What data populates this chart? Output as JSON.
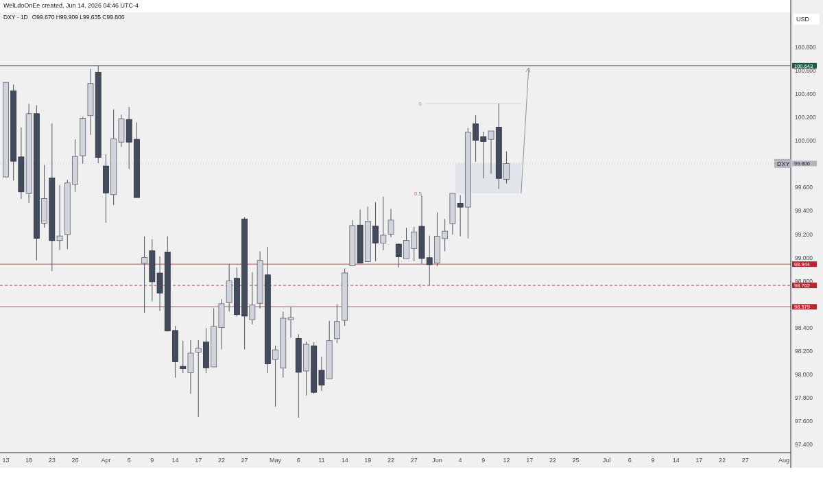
{
  "chart_data": {
    "type": "candlestick",
    "title": "DXY · 1D",
    "subtitle": "O99.670 H99.909 L99.635 C99.806",
    "ylabel": "USD",
    "annotations": [
      "WelLdoOnEe created, Jun 14, 2026 04:46 UTC-4",
      {
        "text": "DXY",
        "y": 99.806
      },
      "0",
      "0.5",
      {
        "text": "1",
        "y": 98.762
      }
    ],
    "categories": [
      "13",
      null,
      null,
      "18",
      null,
      null,
      "23",
      null,
      null,
      "26",
      null,
      null,
      null,
      "Apr",
      null,
      null,
      "6",
      null,
      null,
      "9",
      null,
      null,
      "14",
      null,
      null,
      "17",
      null,
      null,
      "22",
      null,
      null,
      "27",
      null,
      null,
      null,
      "May",
      null,
      null,
      "6",
      null,
      null,
      "11",
      null,
      null,
      "14",
      null,
      null,
      "19",
      null,
      null,
      "22",
      null,
      null,
      "27",
      null,
      null,
      "Jun",
      null,
      null,
      "4",
      null,
      null,
      "9",
      null,
      null,
      "12",
      null,
      null,
      "17",
      null,
      null,
      "22",
      null,
      null,
      "25",
      null,
      null,
      null,
      "Jul",
      null,
      null,
      "6",
      null,
      null,
      "9",
      null,
      null,
      "14",
      null,
      null,
      "17",
      null,
      null,
      "22",
      null,
      null,
      "27",
      null,
      null,
      null,
      null,
      "Aug"
    ],
    "ohlc": [
      [
        99.69,
        100.5,
        99.69,
        100.5
      ],
      [
        100.428,
        100.483,
        99.661,
        99.825
      ],
      [
        99.862,
        100.115,
        99.502,
        99.563
      ],
      [
        99.549,
        100.316,
        99.467,
        100.232
      ],
      [
        100.232,
        100.305,
        98.977,
        99.165
      ],
      [
        99.294,
        99.794,
        99.257,
        99.506
      ],
      [
        99.682,
        100.148,
        98.885,
        99.146
      ],
      [
        99.146,
        99.621,
        99.065,
        99.185
      ],
      [
        99.197,
        99.666,
        99.073,
        99.639
      ],
      [
        99.627,
        100.013,
        99.563,
        99.866
      ],
      [
        99.872,
        100.207,
        99.805,
        100.193
      ],
      [
        100.215,
        100.616,
        100.05,
        100.491
      ],
      [
        100.587,
        100.643,
        99.809,
        99.858
      ],
      [
        99.784,
        99.886,
        99.298,
        99.553
      ],
      [
        99.539,
        100.269,
        99.451,
        100.017
      ],
      [
        99.989,
        100.224,
        99.948,
        100.189
      ],
      [
        100.183,
        100.289,
        99.758,
        99.989
      ],
      [
        100.013,
        100.158,
        99.514,
        99.514
      ],
      [
        98.95,
        99.181,
        98.527,
        99.001
      ],
      [
        99.058,
        99.157,
        98.625,
        98.793
      ],
      [
        98.868,
        99.011,
        98.543,
        98.697
      ],
      [
        99.048,
        99.182,
        98.367,
        98.373
      ],
      [
        98.376,
        98.415,
        97.972,
        98.109
      ],
      [
        98.069,
        98.289,
        98.01,
        98.05
      ],
      [
        98.014,
        98.293,
        97.833,
        98.182
      ],
      [
        98.19,
        98.293,
        97.636,
        98.224
      ],
      [
        98.277,
        98.396,
        98.01,
        98.056
      ],
      [
        98.064,
        98.567,
        98.064,
        98.411
      ],
      [
        98.401,
        98.644,
        98.214,
        98.605
      ],
      [
        98.615,
        98.943,
        98.539,
        98.8
      ],
      [
        98.823,
        98.916,
        98.495,
        98.512
      ],
      [
        99.331,
        99.346,
        98.214,
        98.499
      ],
      [
        98.468,
        98.876,
        98.428,
        98.594
      ],
      [
        98.609,
        99.054,
        98.563,
        98.976
      ],
      [
        98.852,
        99.092,
        98.01,
        98.09
      ],
      [
        98.128,
        98.247,
        97.724,
        98.21
      ],
      [
        98.054,
        98.539,
        97.972,
        98.481
      ],
      [
        98.468,
        98.579,
        98.314,
        98.487
      ],
      [
        98.308,
        98.344,
        97.629,
        98.018
      ],
      [
        98.029,
        98.281,
        97.819,
        98.258
      ],
      [
        98.245,
        98.277,
        97.833,
        97.846
      ],
      [
        98.035,
        98.153,
        97.858,
        97.909
      ],
      [
        97.962,
        98.459,
        97.957,
        98.289
      ],
      [
        98.306,
        98.602,
        98.268,
        98.453
      ],
      [
        98.463,
        98.907,
        98.415,
        98.869
      ],
      [
        98.93,
        99.321,
        98.93,
        99.274
      ],
      [
        99.278,
        99.411,
        98.949,
        98.953
      ],
      [
        98.965,
        99.436,
        98.965,
        99.312
      ],
      [
        99.27,
        99.474,
        98.969,
        99.125
      ],
      [
        99.125,
        99.522,
        99.064,
        99.192
      ],
      [
        99.201,
        99.417,
        99.175,
        99.321
      ],
      [
        99.115,
        99.121,
        98.915,
        99.007
      ],
      [
        98.989,
        99.255,
        98.989,
        99.148
      ],
      [
        99.077,
        99.264,
        98.969,
        99.22
      ],
      [
        99.268,
        99.531,
        98.946,
        98.993
      ],
      [
        98.999,
        99.188,
        98.762,
        98.94
      ],
      [
        98.953,
        99.388,
        98.925,
        99.182
      ],
      [
        99.163,
        99.331,
        99.054,
        99.226
      ],
      [
        99.292,
        99.55,
        99.197,
        99.55
      ],
      [
        99.464,
        99.535,
        99.182,
        99.432
      ],
      [
        99.432,
        100.109,
        99.164,
        100.073
      ],
      [
        100.145,
        100.218,
        99.821,
        100.004
      ],
      [
        100.036,
        100.078,
        99.68,
        99.994
      ],
      [
        100.013,
        100.084,
        99.718,
        100.084
      ],
      [
        100.117,
        100.319,
        99.588,
        99.678
      ],
      [
        99.67,
        99.909,
        99.635,
        99.806
      ],
      null,
      null,
      null,
      null,
      null,
      null,
      null,
      null,
      null,
      null,
      null,
      null,
      null,
      null,
      null,
      null,
      null,
      null,
      null,
      null,
      null,
      null,
      null,
      null,
      null,
      null,
      null,
      null,
      null,
      null,
      null,
      null,
      null,
      null,
      null,
      null
    ],
    "ylim": [
      97.33,
      101.1
    ],
    "yticks": [
      {
        "value": 97.4,
        "label": "97.400"
      },
      {
        "value": 97.6,
        "label": "97.600"
      },
      {
        "value": 97.8,
        "label": "97.800"
      },
      {
        "value": 98.0,
        "label": "98.000"
      },
      {
        "value": 98.2,
        "label": "98.200"
      },
      {
        "value": 98.4,
        "label": "98.400"
      },
      {
        "value": 98.8,
        "label": "98.800"
      },
      {
        "value": 99.0,
        "label": "99.000"
      },
      {
        "value": 99.2,
        "label": "99.200"
      },
      {
        "value": 99.4,
        "label": "99.400"
      },
      {
        "value": 99.6,
        "label": "99.600"
      },
      {
        "value": 100.0,
        "label": "100.000"
      },
      {
        "value": 100.2,
        "label": "100.200"
      },
      {
        "value": 100.4,
        "label": "100.400"
      },
      {
        "value": 100.6,
        "label": "100.600"
      },
      {
        "value": 100.8,
        "label": "100.800"
      }
    ],
    "ref_lines": [
      {
        "axis": "y",
        "value": 100.643,
        "label": "100.643",
        "color": "#1e5b47",
        "line_style": "solid"
      },
      {
        "axis": "y",
        "value": 99.806,
        "label": "99.806",
        "color": "#b2b5be",
        "line_style": "dotted"
      },
      {
        "axis": "y",
        "value": 98.944,
        "label": "98.944",
        "color": "#b22833",
        "line_style": "solid"
      },
      {
        "axis": "y",
        "value": 98.762,
        "label": "98.762",
        "color": "#b22833",
        "line_style": "dashed"
      },
      {
        "axis": "y",
        "value": 98.579,
        "label": "98.579",
        "color": "#b22833",
        "line_style": "solid"
      }
    ],
    "bands": [
      {
        "axis": "y",
        "from": 99.55,
        "to": 99.806,
        "color": "#dfe2e8"
      }
    ]
  }
}
